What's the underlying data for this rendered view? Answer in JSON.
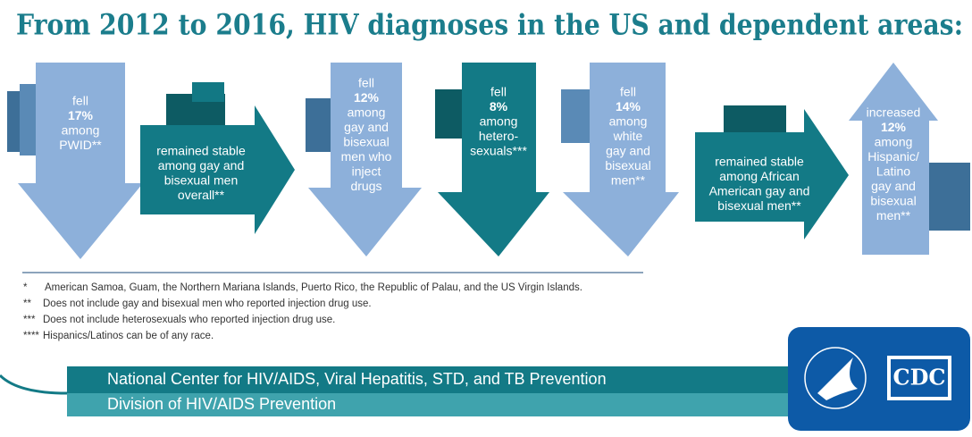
{
  "title": "From 2012 to 2016, HIV diagnoses in the US and dependent areas:",
  "arrows": [
    {
      "lines": [
        "fell",
        "17%",
        "among",
        "PWID**"
      ]
    },
    {
      "lines": [
        "remained stable",
        "among gay and",
        "bisexual men",
        "overall**"
      ]
    },
    {
      "lines": [
        "fell",
        "12%",
        "among",
        "gay and",
        "bisexual",
        "men who",
        "inject",
        "drugs"
      ]
    },
    {
      "lines": [
        "fell",
        "8%",
        "among",
        "hetero-",
        "sexuals***"
      ]
    },
    {
      "lines": [
        "fell",
        "14%",
        "among",
        "white",
        "gay and",
        "bisexual",
        "men**"
      ]
    },
    {
      "lines": [
        "remained stable",
        "among African",
        "American gay and",
        "bisexual men**"
      ]
    },
    {
      "lines": [
        "increased",
        "12%",
        "among",
        "Hispanic/",
        "Latino",
        "gay and",
        "bisexual",
        "men**"
      ]
    }
  ],
  "footnotes": [
    {
      "marker": "*",
      "text": "American Samoa, Guam, the Northern Mariana Islands, Puerto Rico, the Republic of Palau, and the US Virgin Islands."
    },
    {
      "marker": "**",
      "text": "Does not include gay and bisexual men who reported injection drug use."
    },
    {
      "marker": "***",
      "text": "Does not include heterosexuals who reported injection drug use."
    },
    {
      "marker": "****",
      "text": "Hispanics/Latinos can be of any race."
    }
  ],
  "footer": {
    "center": "National Center for HIV/AIDS, Viral Hepatitis, STD, and TB Prevention",
    "division": "Division of HIV/AIDS Prevention"
  },
  "logo": {
    "text": "CDC"
  }
}
